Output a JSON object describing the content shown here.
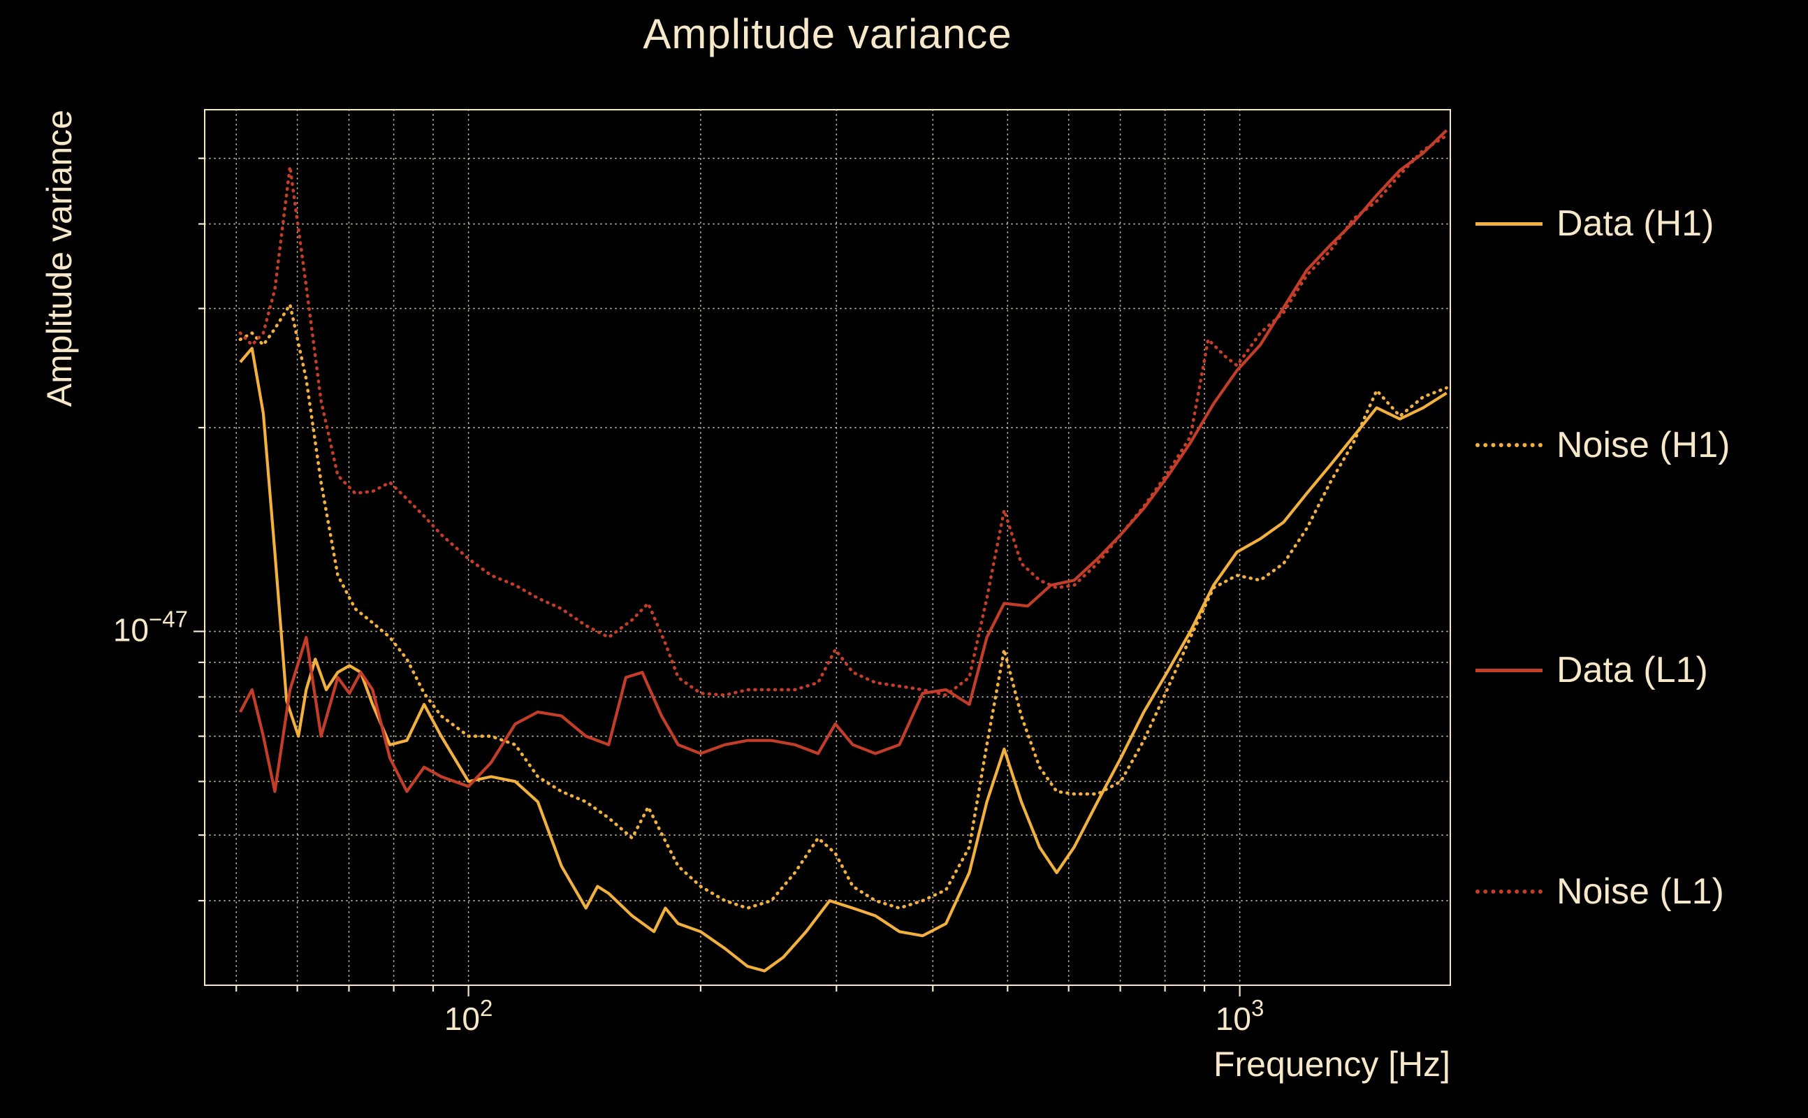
{
  "colors": {
    "background": "#000000",
    "text": "#f6e8c8",
    "grid": "#f6e8c8",
    "h1": "#f2b03f",
    "l1": "#c43d29"
  },
  "chart_data": {
    "type": "line",
    "title": "Amplitude variance",
    "xlabel": "Frequency [Hz]",
    "ylabel": "Amplitude variance",
    "x_scale": "log",
    "y_scale": "log",
    "xlim": [
      45.5,
      1875
    ],
    "ylim": [
      3e-48,
      5.9e-47
    ],
    "grid": "dotted",
    "legend_position": "right-outside",
    "x_ticks": [
      {
        "value": 100,
        "base": "10",
        "exp": "2"
      },
      {
        "value": 1000,
        "base": "10",
        "exp": "3"
      }
    ],
    "y_ticks": [
      {
        "value": 1e-47,
        "base": "10",
        "exp": "−47"
      }
    ],
    "x_gridlines": [
      50,
      60,
      70,
      80,
      90,
      100,
      200,
      300,
      400,
      500,
      600,
      700,
      800,
      900,
      1000
    ],
    "y_gridlines": [
      4e-48,
      5e-48,
      6e-48,
      7e-48,
      8e-48,
      9e-48,
      1e-47,
      2e-47,
      3e-47,
      4e-47,
      5e-47
    ],
    "series": [
      {
        "name": "Data (H1)",
        "color": "#f2b03f",
        "style": "solid",
        "points": [
          [
            50.6,
            2.5e-47
          ],
          [
            52.4,
            2.62e-47
          ],
          [
            54.2,
            2.1e-47
          ],
          [
            56.1,
            1.31e-47
          ],
          [
            58.1,
            7.9e-48
          ],
          [
            60.2,
            7e-48
          ],
          [
            61.6,
            8.2e-48
          ],
          [
            63.3,
            9.1e-48
          ],
          [
            65.4,
            8.2e-48
          ],
          [
            67.7,
            8.7e-48
          ],
          [
            70.1,
            8.9e-48
          ],
          [
            72.5,
            8.7e-48
          ],
          [
            75.1,
            7.8e-48
          ],
          [
            79.1,
            6.8e-48
          ],
          [
            83.2,
            6.9e-48
          ],
          [
            87.6,
            7.8e-48
          ],
          [
            92.2,
            7e-48
          ],
          [
            100,
            6e-48
          ],
          [
            107,
            6.1e-48
          ],
          [
            115,
            6e-48
          ],
          [
            123,
            5.6e-48
          ],
          [
            132,
            4.5e-48
          ],
          [
            142,
            3.9e-48
          ],
          [
            147,
            4.2e-48
          ],
          [
            152,
            4.1e-48
          ],
          [
            163,
            3.8e-48
          ],
          [
            174,
            3.6e-48
          ],
          [
            180,
            3.9e-48
          ],
          [
            187,
            3.7e-48
          ],
          [
            200,
            3.6e-48
          ],
          [
            215,
            3.4e-48
          ],
          [
            230,
            3.2e-48
          ],
          [
            242,
            3.15e-48
          ],
          [
            256,
            3.3e-48
          ],
          [
            274,
            3.6e-48
          ],
          [
            294,
            4e-48
          ],
          [
            315,
            3.9e-48
          ],
          [
            337,
            3.8e-48
          ],
          [
            362,
            3.6e-48
          ],
          [
            388,
            3.55e-48
          ],
          [
            416,
            3.7e-48
          ],
          [
            446,
            4.4e-48
          ],
          [
            470,
            5.6e-48
          ],
          [
            495,
            6.7e-48
          ],
          [
            521,
            5.6e-48
          ],
          [
            550,
            4.8e-48
          ],
          [
            579,
            4.4e-48
          ],
          [
            610,
            4.8e-48
          ],
          [
            654,
            5.6e-48
          ],
          [
            701,
            6.5e-48
          ],
          [
            751,
            7.6e-48
          ],
          [
            805,
            8.7e-48
          ],
          [
            863,
            1e-47
          ],
          [
            925,
            1.17e-47
          ],
          [
            992,
            1.31e-47
          ],
          [
            1063,
            1.37e-47
          ],
          [
            1140,
            1.45e-47
          ],
          [
            1222,
            1.6e-47
          ],
          [
            1310,
            1.76e-47
          ],
          [
            1404,
            1.94e-47
          ],
          [
            1505,
            2.14e-47
          ],
          [
            1613,
            2.06e-47
          ],
          [
            1729,
            2.14e-47
          ],
          [
            1854,
            2.25e-47
          ]
        ]
      },
      {
        "name": "Noise (H1)",
        "color": "#f2b03f",
        "style": "dotted",
        "points": [
          [
            50.6,
            2.7e-47
          ],
          [
            52.4,
            2.76e-47
          ],
          [
            54.2,
            2.65e-47
          ],
          [
            56.1,
            2.8e-47
          ],
          [
            58.7,
            3.04e-47
          ],
          [
            61.6,
            2.36e-47
          ],
          [
            64.4,
            1.66e-47
          ],
          [
            67.7,
            1.21e-47
          ],
          [
            71.3,
            1.08e-47
          ],
          [
            75.1,
            1.03e-47
          ],
          [
            79.1,
            9.8e-48
          ],
          [
            83.2,
            9.1e-48
          ],
          [
            87.6,
            8.1e-48
          ],
          [
            92.2,
            7.5e-48
          ],
          [
            100,
            7e-48
          ],
          [
            107,
            7e-48
          ],
          [
            115,
            6.8e-48
          ],
          [
            123,
            6.1e-48
          ],
          [
            132,
            5.8e-48
          ],
          [
            142,
            5.6e-48
          ],
          [
            152,
            5.3e-48
          ],
          [
            163,
            4.95e-48
          ],
          [
            171,
            5.5e-48
          ],
          [
            180,
            4.9e-48
          ],
          [
            187,
            4.5e-48
          ],
          [
            200,
            4.2e-48
          ],
          [
            215,
            4e-48
          ],
          [
            230,
            3.9e-48
          ],
          [
            247,
            4e-48
          ],
          [
            265,
            4.4e-48
          ],
          [
            284,
            4.95e-48
          ],
          [
            299,
            4.7e-48
          ],
          [
            315,
            4.2e-48
          ],
          [
            337,
            4e-48
          ],
          [
            362,
            3.9e-48
          ],
          [
            388,
            4e-48
          ],
          [
            416,
            4.15e-48
          ],
          [
            446,
            4.8e-48
          ],
          [
            470,
            6.8e-48
          ],
          [
            495,
            9.4e-48
          ],
          [
            521,
            7.5e-48
          ],
          [
            550,
            6.3e-48
          ],
          [
            579,
            5.8e-48
          ],
          [
            610,
            5.75e-48
          ],
          [
            654,
            5.75e-48
          ],
          [
            701,
            6e-48
          ],
          [
            751,
            6.9e-48
          ],
          [
            805,
            8.2e-48
          ],
          [
            863,
            9.8e-48
          ],
          [
            925,
            1.16e-47
          ],
          [
            992,
            1.21e-47
          ],
          [
            1063,
            1.19e-47
          ],
          [
            1140,
            1.26e-47
          ],
          [
            1222,
            1.42e-47
          ],
          [
            1310,
            1.66e-47
          ],
          [
            1404,
            1.9e-47
          ],
          [
            1505,
            2.27e-47
          ],
          [
            1613,
            2.08e-47
          ],
          [
            1729,
            2.22e-47
          ],
          [
            1854,
            2.29e-47
          ]
        ]
      },
      {
        "name": "Data (L1)",
        "color": "#c43d29",
        "style": "solid",
        "points": [
          [
            50.6,
            7.6e-48
          ],
          [
            52.4,
            8.2e-48
          ],
          [
            54.2,
            7e-48
          ],
          [
            56.1,
            5.8e-48
          ],
          [
            58.7,
            8.2e-48
          ],
          [
            61.6,
            9.8e-48
          ],
          [
            64.4,
            7e-48
          ],
          [
            67.7,
            8.55e-48
          ],
          [
            70.1,
            8.1e-48
          ],
          [
            72.5,
            8.7e-48
          ],
          [
            75.1,
            8.2e-48
          ],
          [
            79.1,
            6.5e-48
          ],
          [
            83.2,
            5.8e-48
          ],
          [
            87.6,
            6.3e-48
          ],
          [
            92.2,
            6.1e-48
          ],
          [
            100,
            5.9e-48
          ],
          [
            107,
            6.4e-48
          ],
          [
            115,
            7.3e-48
          ],
          [
            123,
            7.6e-48
          ],
          [
            132,
            7.5e-48
          ],
          [
            142,
            7e-48
          ],
          [
            152,
            6.8e-48
          ],
          [
            160,
            8.55e-48
          ],
          [
            168,
            8.7e-48
          ],
          [
            178,
            7.5e-48
          ],
          [
            187,
            6.8e-48
          ],
          [
            200,
            6.6e-48
          ],
          [
            215,
            6.8e-48
          ],
          [
            230,
            6.9e-48
          ],
          [
            247,
            6.9e-48
          ],
          [
            265,
            6.8e-48
          ],
          [
            284,
            6.6e-48
          ],
          [
            299,
            7.3e-48
          ],
          [
            315,
            6.8e-48
          ],
          [
            337,
            6.6e-48
          ],
          [
            362,
            6.8e-48
          ],
          [
            388,
            8.1e-48
          ],
          [
            416,
            8.2e-48
          ],
          [
            446,
            7.8e-48
          ],
          [
            470,
            9.8e-48
          ],
          [
            495,
            1.1e-47
          ],
          [
            531,
            1.09e-47
          ],
          [
            569,
            1.17e-47
          ],
          [
            610,
            1.19e-47
          ],
          [
            654,
            1.28e-47
          ],
          [
            701,
            1.39e-47
          ],
          [
            751,
            1.52e-47
          ],
          [
            805,
            1.69e-47
          ],
          [
            863,
            1.9e-47
          ],
          [
            925,
            2.17e-47
          ],
          [
            992,
            2.43e-47
          ],
          [
            1063,
            2.65e-47
          ],
          [
            1140,
            3.01e-47
          ],
          [
            1222,
            3.42e-47
          ],
          [
            1310,
            3.72e-47
          ],
          [
            1404,
            4.02e-47
          ],
          [
            1505,
            4.41e-47
          ],
          [
            1613,
            4.8e-47
          ],
          [
            1729,
            5.09e-47
          ],
          [
            1854,
            5.5e-47
          ]
        ]
      },
      {
        "name": "Noise (L1)",
        "color": "#c43d29",
        "style": "dotted",
        "points": [
          [
            50.6,
            2.76e-47
          ],
          [
            52.4,
            2.65e-47
          ],
          [
            54.2,
            2.76e-47
          ],
          [
            56.1,
            3.2e-47
          ],
          [
            58.7,
            4.86e-47
          ],
          [
            61.6,
            3.24e-47
          ],
          [
            64.4,
            2.19e-47
          ],
          [
            67.7,
            1.7e-47
          ],
          [
            71.3,
            1.6e-47
          ],
          [
            75.1,
            1.61e-47
          ],
          [
            79.1,
            1.66e-47
          ],
          [
            83.2,
            1.57e-47
          ],
          [
            87.6,
            1.48e-47
          ],
          [
            92.2,
            1.39e-47
          ],
          [
            100,
            1.28e-47
          ],
          [
            107,
            1.21e-47
          ],
          [
            115,
            1.17e-47
          ],
          [
            123,
            1.12e-47
          ],
          [
            132,
            1.08e-47
          ],
          [
            142,
            1.02e-47
          ],
          [
            152,
            9.8e-48
          ],
          [
            163,
            1.04e-47
          ],
          [
            171,
            1.1e-47
          ],
          [
            180,
            9.6e-48
          ],
          [
            187,
            8.55e-48
          ],
          [
            200,
            8.1e-48
          ],
          [
            215,
            8.05e-48
          ],
          [
            230,
            8.2e-48
          ],
          [
            247,
            8.2e-48
          ],
          [
            265,
            8.2e-48
          ],
          [
            284,
            8.4e-48
          ],
          [
            299,
            9.4e-48
          ],
          [
            315,
            8.7e-48
          ],
          [
            337,
            8.4e-48
          ],
          [
            362,
            8.3e-48
          ],
          [
            388,
            8.2e-48
          ],
          [
            416,
            8.05e-48
          ],
          [
            446,
            8.55e-48
          ],
          [
            470,
            1.12e-47
          ],
          [
            495,
            1.51e-47
          ],
          [
            521,
            1.26e-47
          ],
          [
            550,
            1.19e-47
          ],
          [
            579,
            1.16e-47
          ],
          [
            610,
            1.17e-47
          ],
          [
            654,
            1.26e-47
          ],
          [
            701,
            1.39e-47
          ],
          [
            751,
            1.53e-47
          ],
          [
            805,
            1.71e-47
          ],
          [
            863,
            1.94e-47
          ],
          [
            910,
            2.7e-47
          ],
          [
            957,
            2.55e-47
          ],
          [
            992,
            2.47e-47
          ],
          [
            1063,
            2.76e-47
          ],
          [
            1140,
            2.96e-47
          ],
          [
            1222,
            3.36e-47
          ],
          [
            1310,
            3.65e-47
          ],
          [
            1404,
            4.07e-47
          ],
          [
            1505,
            4.32e-47
          ],
          [
            1613,
            4.73e-47
          ],
          [
            1729,
            5.14e-47
          ],
          [
            1854,
            5.4e-47
          ]
        ]
      }
    ]
  }
}
